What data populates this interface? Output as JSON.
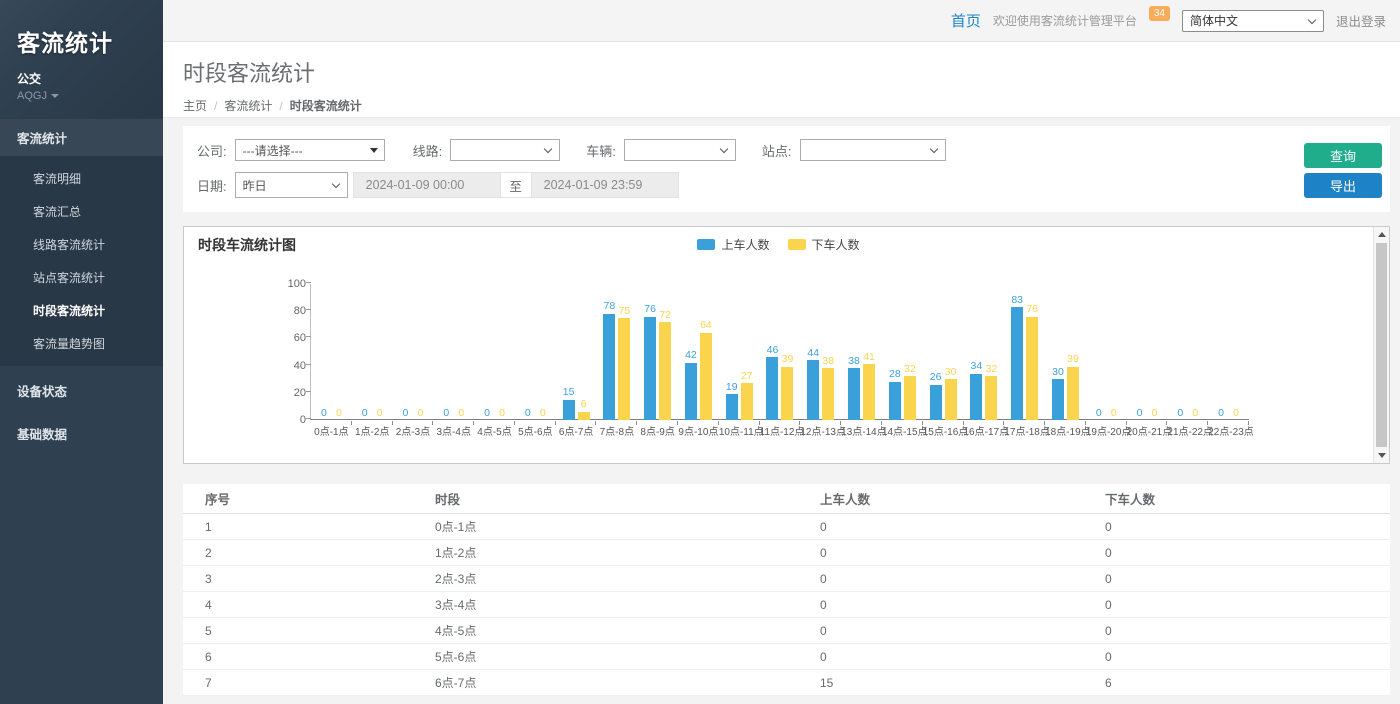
{
  "colors": {
    "sidebar_bg": "#2f4050",
    "sidebar_sub_bg": "#293846",
    "topbar_bg": "#f4f4f5",
    "link_blue": "#1c84c6",
    "badge_orange": "#f8ac59",
    "query_green": "#1fad8c",
    "export_blue": "#1e82c6",
    "content_bg": "#f3f3f4"
  },
  "sidebar": {
    "logo": "客流统计",
    "org": "公交",
    "org_code": "AQGJ",
    "sections": [
      {
        "label": "客流统计",
        "children": [
          "客流明细",
          "客流汇总",
          "线路客流统计",
          "站点客流统计",
          "时段客流统计",
          "客流量趋势图"
        ],
        "active_child": "时段客流统计"
      },
      {
        "label": "设备状态"
      },
      {
        "label": "基础数据"
      }
    ]
  },
  "header": {
    "home": "首页",
    "welcome": "欢迎使用客流统计管理平台",
    "badge": "34",
    "language": "简体中文",
    "logout": "退出登录"
  },
  "page": {
    "title": "时段客流统计",
    "breadcrumb": [
      "主页",
      "客流统计",
      "时段客流统计"
    ]
  },
  "filters": {
    "company_label": "公司:",
    "company_value": "---请选择---",
    "line_label": "线路:",
    "line_value": "",
    "vehicle_label": "车辆:",
    "vehicle_value": "",
    "station_label": "站点:",
    "station_value": "",
    "date_label": "日期:",
    "date_preset": "昨日",
    "date_from": "2024-01-09 00:00",
    "date_to_sep": "至",
    "date_to": "2024-01-09 23:59",
    "query_button": "查询",
    "export_button": "导出"
  },
  "chart_data": {
    "type": "bar",
    "title": "时段车流统计图",
    "categories": [
      "0点-1点",
      "1点-2点",
      "2点-3点",
      "3点-4点",
      "4点-5点",
      "5点-6点",
      "6点-7点",
      "7点-8点",
      "8点-9点",
      "9点-10点",
      "10点-11点",
      "11点-12点",
      "12点-13点",
      "13点-14点",
      "14点-15点",
      "15点-16点",
      "16点-17点",
      "17点-18点",
      "18点-19点",
      "19点-20点",
      "20点-21点",
      "21点-22点",
      "22点-23点"
    ],
    "series": [
      {
        "name": "上车人数",
        "color": "#3aa0da",
        "values": [
          0,
          0,
          0,
          0,
          0,
          0,
          15,
          78,
          76,
          42,
          19,
          46,
          44,
          38,
          28,
          26,
          34,
          83,
          30,
          0,
          0,
          0,
          0
        ]
      },
      {
        "name": "下车人数",
        "color": "#fbd44e",
        "values": [
          0,
          0,
          0,
          0,
          0,
          0,
          6,
          75,
          72,
          64,
          27,
          39,
          38,
          41,
          32,
          30,
          32,
          76,
          39,
          0,
          0,
          0,
          0
        ]
      }
    ],
    "ylim": [
      0,
      100
    ],
    "yticks": [
      0,
      20,
      40,
      60,
      80,
      100
    ],
    "legend_position": "top-center",
    "grid": false
  },
  "table": {
    "columns": [
      "序号",
      "时段",
      "上车人数",
      "下车人数"
    ],
    "rows": [
      [
        "1",
        "0点-1点",
        "0",
        "0"
      ],
      [
        "2",
        "1点-2点",
        "0",
        "0"
      ],
      [
        "3",
        "2点-3点",
        "0",
        "0"
      ],
      [
        "4",
        "3点-4点",
        "0",
        "0"
      ],
      [
        "5",
        "4点-5点",
        "0",
        "0"
      ],
      [
        "6",
        "5点-6点",
        "0",
        "0"
      ],
      [
        "7",
        "6点-7点",
        "15",
        "6"
      ]
    ]
  }
}
